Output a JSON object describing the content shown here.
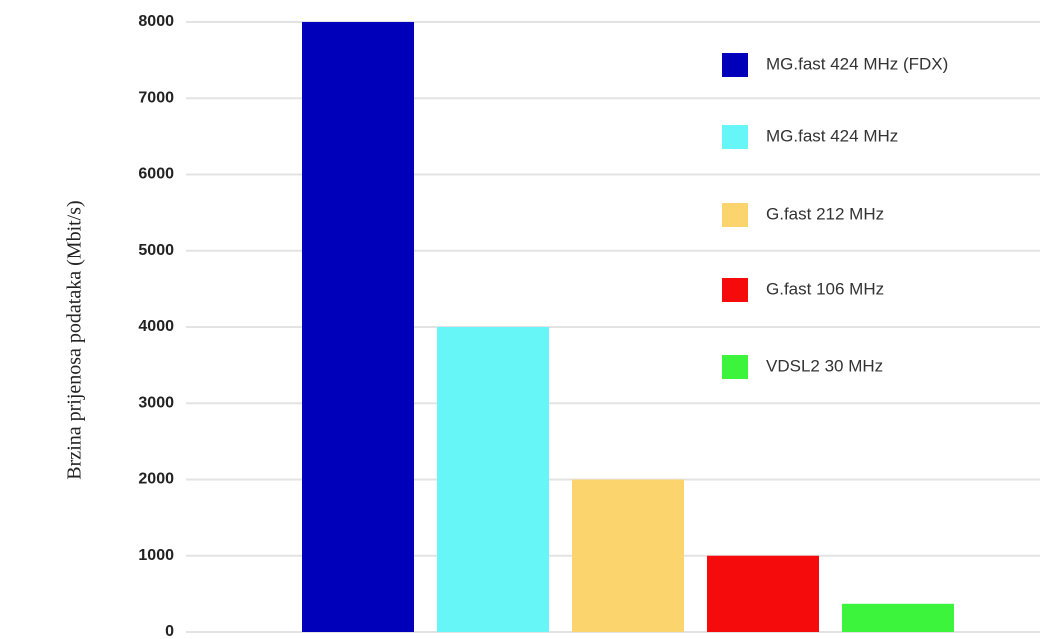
{
  "chart_data": {
    "type": "bar",
    "y_label": "Brzina prijenosa podataka (Mbit/s)",
    "categories": [
      null
    ],
    "series": [
      {
        "name": "MG.fast 424 MHz (FDX)",
        "color": "#0000bb",
        "values": [
          8000
        ]
      },
      {
        "name": "MG.fast 424 MHz",
        "color": "#66f6f8",
        "values": [
          4000
        ]
      },
      {
        "name": "G.fast 212 MHz",
        "color": "#fcd46e",
        "values": [
          2000
        ]
      },
      {
        "name": "G.fast 106 MHz",
        "color": "#f50b0b",
        "values": [
          1000
        ]
      },
      {
        "name": "VDSL2 30 MHz",
        "color": "#3cf43c",
        "values": [
          370
        ]
      }
    ],
    "ylim": [
      0,
      8000
    ],
    "yticks": [
      0,
      1000,
      2000,
      3000,
      4000,
      5000,
      6000,
      7000,
      8000
    ],
    "grid": true,
    "legend": "upper-right"
  }
}
